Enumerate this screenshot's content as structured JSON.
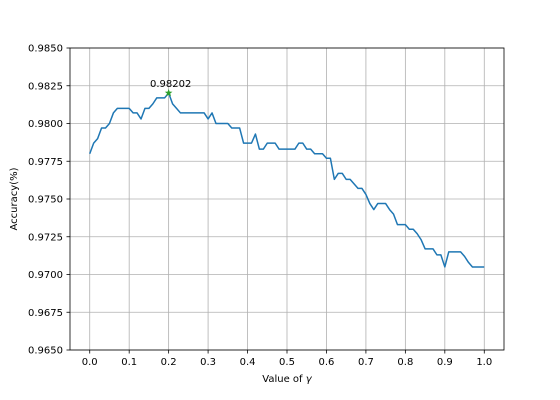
{
  "chart_data": {
    "type": "line",
    "title": "",
    "xlabel": "Value of ",
    "xlabel_symbol": "γ",
    "ylabel": "Accuracy(%)",
    "xlim": [
      -0.05,
      1.05
    ],
    "ylim": [
      0.965,
      0.985
    ],
    "grid": true,
    "xticks": [
      0.0,
      0.1,
      0.2,
      0.3,
      0.4,
      0.5,
      0.6,
      0.7,
      0.8,
      0.9,
      1.0
    ],
    "xtick_labels": [
      "0.0",
      "0.1",
      "0.2",
      "0.3",
      "0.4",
      "0.5",
      "0.6",
      "0.7",
      "0.8",
      "0.9",
      "1.0"
    ],
    "yticks": [
      0.965,
      0.9675,
      0.97,
      0.9725,
      0.975,
      0.9775,
      0.98,
      0.9825,
      0.985
    ],
    "ytick_labels": [
      "0.9650",
      "0.9675",
      "0.9700",
      "0.9725",
      "0.9750",
      "0.9775",
      "0.9800",
      "0.9825",
      "0.9850"
    ],
    "series": [
      {
        "name": "accuracy",
        "color": "#1f77b4",
        "x": [
          0.0,
          0.01,
          0.02,
          0.03,
          0.04,
          0.05,
          0.06,
          0.07,
          0.08,
          0.09,
          0.1,
          0.11,
          0.12,
          0.13,
          0.14,
          0.15,
          0.16,
          0.17,
          0.18,
          0.19,
          0.2,
          0.21,
          0.22,
          0.23,
          0.24,
          0.25,
          0.26,
          0.27,
          0.28,
          0.29,
          0.3,
          0.31,
          0.32,
          0.33,
          0.34,
          0.35,
          0.36,
          0.37,
          0.38,
          0.39,
          0.4,
          0.41,
          0.42,
          0.43,
          0.44,
          0.45,
          0.46,
          0.47,
          0.48,
          0.49,
          0.5,
          0.51,
          0.52,
          0.53,
          0.54,
          0.55,
          0.56,
          0.57,
          0.58,
          0.59,
          0.6,
          0.61,
          0.62,
          0.63,
          0.64,
          0.65,
          0.66,
          0.67,
          0.68,
          0.69,
          0.7,
          0.71,
          0.72,
          0.73,
          0.74,
          0.75,
          0.76,
          0.77,
          0.78,
          0.79,
          0.8,
          0.81,
          0.82,
          0.83,
          0.84,
          0.85,
          0.86,
          0.87,
          0.88,
          0.89,
          0.9,
          0.91,
          0.92,
          0.93,
          0.94,
          0.95,
          0.96,
          0.97,
          0.98,
          0.99,
          1.0
        ],
        "y": [
          0.978,
          0.9787,
          0.979,
          0.9797,
          0.9797,
          0.98,
          0.9807,
          0.981,
          0.981,
          0.981,
          0.981,
          0.9807,
          0.9807,
          0.9803,
          0.981,
          0.981,
          0.9813,
          0.9817,
          0.9817,
          0.9817,
          0.98202,
          0.9813,
          0.981,
          0.9807,
          0.9807,
          0.9807,
          0.9807,
          0.9807,
          0.9807,
          0.9807,
          0.9803,
          0.9807,
          0.98,
          0.98,
          0.98,
          0.98,
          0.9797,
          0.9797,
          0.9797,
          0.9787,
          0.9787,
          0.9787,
          0.9793,
          0.9783,
          0.9783,
          0.9787,
          0.9787,
          0.9787,
          0.9783,
          0.9783,
          0.9783,
          0.9783,
          0.9783,
          0.9787,
          0.9787,
          0.9783,
          0.9783,
          0.978,
          0.978,
          0.978,
          0.9777,
          0.9777,
          0.9763,
          0.9767,
          0.9767,
          0.9763,
          0.9763,
          0.976,
          0.9757,
          0.9757,
          0.9753,
          0.9747,
          0.9743,
          0.9747,
          0.9747,
          0.9747,
          0.9743,
          0.974,
          0.9733,
          0.9733,
          0.9733,
          0.973,
          0.973,
          0.9727,
          0.9723,
          0.9717,
          0.9717,
          0.9717,
          0.9713,
          0.9713,
          0.9705,
          0.9715,
          0.9715,
          0.9715,
          0.9715,
          0.9712,
          0.9708,
          0.9705,
          0.9705,
          0.9705,
          0.9705
        ]
      }
    ],
    "annotations": [
      {
        "x": 0.2,
        "y": 0.98202,
        "text": "0.98202",
        "marker": "star",
        "marker_color": "#2ca02c"
      }
    ]
  }
}
